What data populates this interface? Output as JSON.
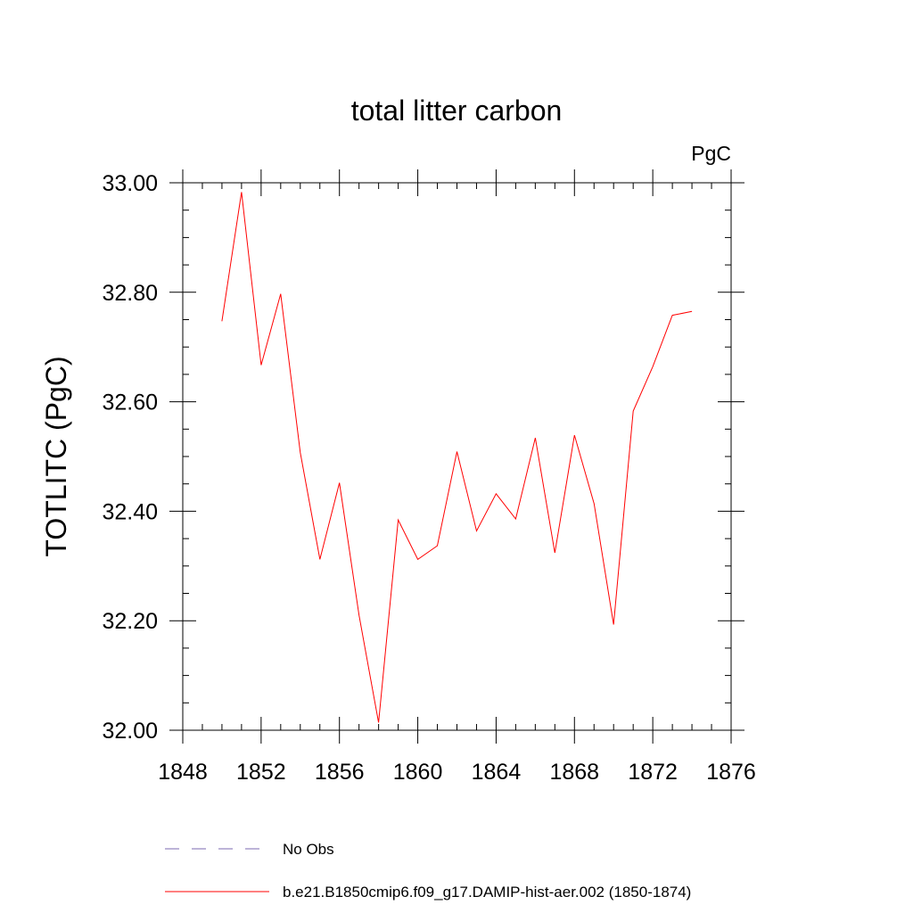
{
  "chart_data": {
    "type": "line",
    "title": "total litter carbon",
    "units_label": "PgC",
    "ylabel": "TOTLITC  (PgC)",
    "xlabel": "",
    "xlim": [
      1848,
      1876
    ],
    "ylim": [
      32.0,
      33.0
    ],
    "x_ticks": [
      "1848",
      "1852",
      "1856",
      "1860",
      "1864",
      "1868",
      "1872",
      "1876"
    ],
    "y_ticks": [
      "32.00",
      "32.20",
      "32.40",
      "32.60",
      "32.80",
      "33.00"
    ],
    "grid": false,
    "legend_position": "bottom",
    "series": [
      {
        "name": "No Obs",
        "color": "#7b68b0",
        "dash": "dashed",
        "x": [],
        "values": []
      },
      {
        "name": "b.e21.B1850cmip6.f09_g17.DAMIP-hist-aer.002 (1850-1874)",
        "color": "#ff0000",
        "dash": "solid",
        "x": [
          1850,
          1851,
          1852,
          1853,
          1854,
          1855,
          1856,
          1857,
          1858,
          1859,
          1860,
          1861,
          1862,
          1863,
          1864,
          1865,
          1866,
          1867,
          1868,
          1869,
          1870,
          1871,
          1872,
          1873,
          1874
        ],
        "values": [
          32.747,
          32.983,
          32.667,
          32.797,
          32.507,
          32.312,
          32.452,
          32.21,
          32.014,
          32.384,
          32.312,
          32.337,
          32.509,
          32.364,
          32.432,
          32.386,
          32.534,
          32.324,
          32.539,
          32.414,
          32.193,
          32.583,
          32.664,
          32.758,
          32.765
        ]
      }
    ]
  }
}
